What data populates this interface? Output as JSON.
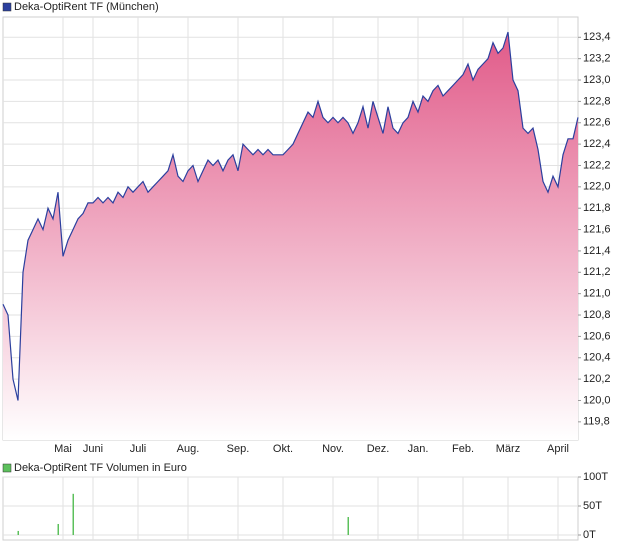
{
  "chart_data": [
    {
      "type": "area",
      "categories": [
        null,
        null,
        null,
        null,
        null,
        null,
        null,
        null,
        null,
        null,
        null,
        null,
        "Mai",
        null,
        null,
        null,
        null,
        null,
        "Juni",
        null,
        null,
        null,
        null,
        null,
        null,
        null,
        null,
        "Juli",
        null,
        null,
        null,
        null,
        null,
        null,
        null,
        null,
        null,
        "Aug.",
        null,
        null,
        null,
        null,
        null,
        null,
        null,
        null,
        null,
        "Sep.",
        null,
        null,
        null,
        null,
        null,
        null,
        null,
        null,
        "Okt.",
        null,
        null,
        null,
        null,
        null,
        null,
        null,
        null,
        null,
        "Nov.",
        null,
        null,
        null,
        null,
        null,
        null,
        null,
        null,
        "Dez.",
        null,
        null,
        null,
        null,
        null,
        null,
        null,
        "Jan.",
        null,
        null,
        null,
        null,
        null,
        null,
        null,
        null,
        "Feb.",
        null,
        null,
        null,
        null,
        null,
        null,
        null,
        null,
        "März",
        null,
        null,
        null,
        null,
        null,
        null,
        null,
        null,
        null,
        "April",
        null,
        null,
        null,
        null
      ],
      "series": [
        {
          "name": "Deka-OptiRent TF (München)",
          "color": "#2b3f9e",
          "values": [
            120.9,
            120.8,
            120.2,
            120.0,
            121.2,
            121.5,
            121.6,
            121.7,
            121.6,
            121.8,
            121.7,
            121.95,
            121.35,
            121.5,
            121.6,
            121.7,
            121.75,
            121.85,
            121.85,
            121.9,
            121.85,
            121.9,
            121.85,
            121.95,
            121.9,
            122.0,
            121.95,
            122.0,
            122.05,
            121.95,
            122.0,
            122.05,
            122.1,
            122.15,
            122.3,
            122.1,
            122.05,
            122.15,
            122.2,
            122.05,
            122.15,
            122.25,
            122.2,
            122.25,
            122.15,
            122.25,
            122.3,
            122.15,
            122.4,
            122.35,
            122.3,
            122.35,
            122.3,
            122.35,
            122.3,
            122.3,
            122.3,
            122.35,
            122.4,
            122.5,
            122.6,
            122.7,
            122.65,
            122.8,
            122.65,
            122.6,
            122.65,
            122.6,
            122.65,
            122.6,
            122.5,
            122.6,
            122.75,
            122.55,
            122.8,
            122.65,
            122.5,
            122.75,
            122.55,
            122.5,
            122.6,
            122.65,
            122.8,
            122.7,
            122.85,
            122.8,
            122.9,
            122.95,
            122.85,
            122.9,
            122.95,
            123.0,
            123.05,
            123.15,
            123.0,
            123.1,
            123.15,
            123.2,
            123.35,
            123.25,
            123.3,
            123.45,
            123.0,
            122.9,
            122.55,
            122.5,
            122.55,
            122.35,
            122.05,
            121.95,
            122.1,
            122.0,
            122.3,
            122.45,
            122.45,
            122.65
          ]
        }
      ],
      "ylim": [
        119.63,
        123.59
      ],
      "yticks": [
        {
          "value": 119.8,
          "label": "119,8"
        },
        {
          "value": 120.0,
          "label": "120,0"
        },
        {
          "value": 120.2,
          "label": "120,2"
        },
        {
          "value": 120.4,
          "label": "120,4"
        },
        {
          "value": 120.6,
          "label": "120,6"
        },
        {
          "value": 120.8,
          "label": "120,8"
        },
        {
          "value": 121.0,
          "label": "121,0"
        },
        {
          "value": 121.2,
          "label": "121,2"
        },
        {
          "value": 121.4,
          "label": "121,4"
        },
        {
          "value": 121.6,
          "label": "121,6"
        },
        {
          "value": 121.8,
          "label": "121,8"
        },
        {
          "value": 122.0,
          "label": "122,0"
        },
        {
          "value": 122.2,
          "label": "122,2"
        },
        {
          "value": 122.4,
          "label": "122,4"
        },
        {
          "value": 122.6,
          "label": "122,6"
        },
        {
          "value": 122.8,
          "label": "122,8"
        },
        {
          "value": 123.0,
          "label": "123,0"
        },
        {
          "value": 123.2,
          "label": "123,2"
        },
        {
          "value": 123.4,
          "label": "123,4"
        }
      ],
      "grid": true
    },
    {
      "type": "bar",
      "series": [
        {
          "name": "Deka-OptiRent TF Volumen in Euro",
          "color": "#5cc05c",
          "values": [
            null,
            null,
            null,
            7000,
            null,
            null,
            null,
            null,
            null,
            null,
            null,
            19000,
            null,
            null,
            71000,
            null,
            null,
            null,
            null,
            null,
            null,
            null,
            null,
            null,
            null,
            null,
            null,
            null,
            null,
            null,
            null,
            null,
            null,
            null,
            null,
            null,
            null,
            null,
            null,
            null,
            null,
            null,
            null,
            null,
            null,
            null,
            null,
            null,
            null,
            null,
            null,
            null,
            null,
            null,
            null,
            null,
            null,
            null,
            null,
            null,
            null,
            null,
            null,
            null,
            null,
            null,
            null,
            null,
            null,
            31000,
            null,
            null,
            null,
            null,
            null,
            null,
            null,
            null,
            null,
            null,
            null,
            null,
            null,
            null,
            null,
            null,
            null,
            null,
            null,
            null,
            null,
            null,
            null,
            null,
            null,
            null,
            null,
            null,
            null,
            null,
            null,
            null,
            null,
            null,
            null,
            null,
            null,
            null,
            null,
            null,
            null,
            null,
            null,
            null,
            null,
            null
          ]
        }
      ],
      "ylim": [
        0,
        100000
      ],
      "yticks": [
        {
          "value": 0,
          "label": "0T"
        },
        {
          "value": 50000,
          "label": "50T"
        },
        {
          "value": 100000,
          "label": "100T"
        }
      ],
      "grid": true
    }
  ]
}
